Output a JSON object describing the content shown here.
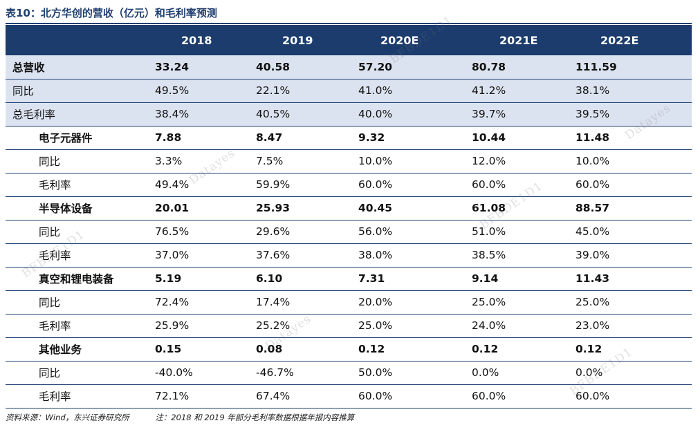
{
  "title": "表10：北方华创的营收（亿元）和毛利率预测",
  "columns": [
    "",
    "2018",
    "2019",
    "2020E",
    "2021E",
    "2022E"
  ],
  "rows": [
    {
      "label": "总营收",
      "values": [
        "33.24",
        "40.58",
        "57.20",
        "80.78",
        "111.59"
      ]
    },
    {
      "label": "同比",
      "values": [
        "49.5%",
        "22.1%",
        "41.0%",
        "41.2%",
        "38.1%"
      ]
    },
    {
      "label": "总毛利率",
      "values": [
        "38.4%",
        "40.5%",
        "40.0%",
        "39.7%",
        "39.5%"
      ]
    },
    {
      "label": "电子元器件",
      "values": [
        "7.88",
        "8.47",
        "9.32",
        "10.44",
        "11.48"
      ]
    },
    {
      "label": "同比",
      "values": [
        "3.3%",
        "7.5%",
        "10.0%",
        "12.0%",
        "10.0%"
      ]
    },
    {
      "label": "毛利率",
      "values": [
        "49.4%",
        "59.9%",
        "60.0%",
        "60.0%",
        "60.0%"
      ]
    },
    {
      "label": "半导体设备",
      "values": [
        "20.01",
        "25.93",
        "40.45",
        "61.08",
        "88.57"
      ]
    },
    {
      "label": "同比",
      "values": [
        "76.5%",
        "29.6%",
        "56.0%",
        "51.0%",
        "45.0%"
      ]
    },
    {
      "label": "毛利率",
      "values": [
        "37.0%",
        "37.6%",
        "38.0%",
        "38.5%",
        "39.0%"
      ]
    },
    {
      "label": "真空和锂电装备",
      "values": [
        "5.19",
        "6.10",
        "7.31",
        "9.14",
        "11.43"
      ]
    },
    {
      "label": "同比",
      "values": [
        "72.4%",
        "17.4%",
        "20.0%",
        "25.0%",
        "25.0%"
      ]
    },
    {
      "label": "毛利率",
      "values": [
        "25.9%",
        "25.2%",
        "25.0%",
        "24.0%",
        "23.0%"
      ]
    },
    {
      "label": "其他业务",
      "values": [
        "0.15",
        "0.08",
        "0.12",
        "0.12",
        "0.12"
      ]
    },
    {
      "label": "同比",
      "values": [
        "-40.0%",
        "-46.7%",
        "50.0%",
        "0.0%",
        "0.0%"
      ]
    },
    {
      "label": "毛利率",
      "values": [
        "72.1%",
        "67.4%",
        "60.0%",
        "60.0%",
        "60.0%"
      ]
    }
  ],
  "source": "资料来源：Wind，东兴证券研究所",
  "note": "注：2018 和 2019 年部分毛利率数据根据年报内容推算",
  "watermarks": [
    "Datayes",
    "BFBDE1D1",
    "Datayes",
    "BFBDE1D1",
    "BFBDE1D1",
    "Datayes",
    "BFBDE1D1"
  ]
}
